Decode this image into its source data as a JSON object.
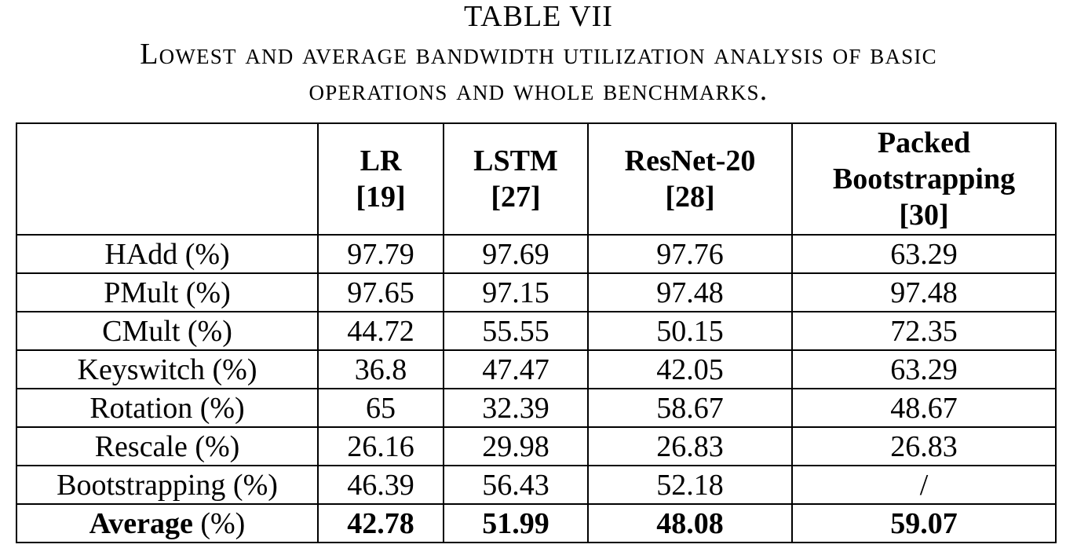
{
  "caption": {
    "label": "TABLE VII",
    "title_line1": "Lowest and average bandwidth utilization analysis of basic",
    "title_line2": "operations and whole benchmarks."
  },
  "table": {
    "headers": [
      {
        "line1": "",
        "line2": "",
        "line3": ""
      },
      {
        "line1": "LR",
        "line2": "[19]",
        "line3": ""
      },
      {
        "line1": "LSTM",
        "line2": "[27]",
        "line3": ""
      },
      {
        "line1": "ResNet-20",
        "line2": "[28]",
        "line3": ""
      },
      {
        "line1": "Packed",
        "line2": "Bootstrapping",
        "line3": "[30]"
      }
    ],
    "rows": [
      {
        "label": "HAdd",
        "unit": "(%)",
        "values": [
          "97.79",
          "97.69",
          "97.76",
          "63.29"
        ]
      },
      {
        "label": "PMult",
        "unit": "(%)",
        "values": [
          "97.65",
          "97.15",
          "97.48",
          "97.48"
        ]
      },
      {
        "label": "CMult",
        "unit": "(%)",
        "values": [
          "44.72",
          "55.55",
          "50.15",
          "72.35"
        ]
      },
      {
        "label": "Keyswitch",
        "unit": "(%)",
        "values": [
          "36.8",
          "47.47",
          "42.05",
          "63.29"
        ]
      },
      {
        "label": "Rotation",
        "unit": "(%)",
        "values": [
          "65",
          "32.39",
          "58.67",
          "48.67"
        ]
      },
      {
        "label": "Rescale",
        "unit": "(%)",
        "values": [
          "26.16",
          "29.98",
          "26.83",
          "26.83"
        ]
      },
      {
        "label": "Bootstrapping",
        "unit": "(%)",
        "values": [
          "46.39",
          "56.43",
          "52.18",
          "/"
        ]
      }
    ],
    "average": {
      "label": "Average",
      "unit": "(%)",
      "values": [
        "42.78",
        "51.99",
        "48.08",
        "59.07"
      ]
    }
  }
}
